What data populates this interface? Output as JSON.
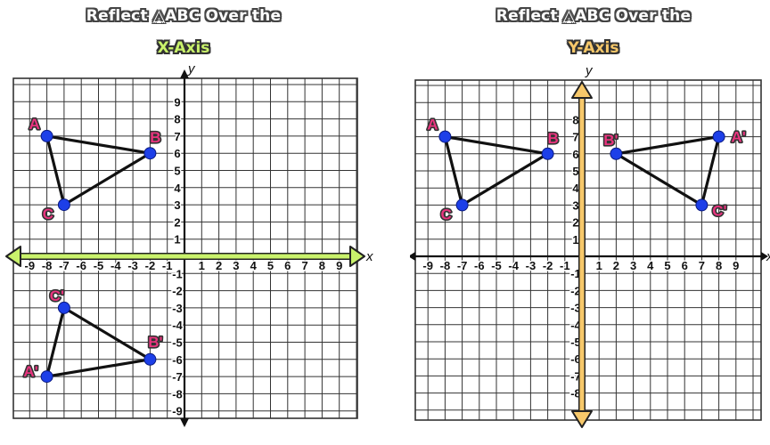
{
  "panels": [
    {
      "title": "Reflect △ABC Over the",
      "subtitle": "X-Axis",
      "subtitle_color": "#c9f26b",
      "axis_highlight_color": "#c9f26b",
      "axis_label_x": "x",
      "axis_label_y": "y",
      "x_ticks": [
        "-9",
        "-8",
        "-7",
        "-6",
        "-5",
        "-4",
        "-3",
        "-2",
        "-1",
        "1",
        "2",
        "3",
        "4",
        "5",
        "6",
        "7",
        "8",
        "9"
      ],
      "y_ticks": [
        "9",
        "8",
        "7",
        "6",
        "5",
        "4",
        "3",
        "2",
        "1",
        "-1",
        "-2",
        "-3",
        "-4",
        "-5",
        "-6",
        "-7",
        "-8",
        "-9"
      ],
      "triangles": [
        {
          "points": [
            {
              "label": "A",
              "x": -8,
              "y": 7
            },
            {
              "label": "B",
              "x": -2,
              "y": 6
            },
            {
              "label": "C",
              "x": -7,
              "y": 3
            }
          ]
        },
        {
          "points": [
            {
              "label": "A'",
              "x": -8,
              "y": -7
            },
            {
              "label": "B'",
              "x": -2,
              "y": -6
            },
            {
              "label": "C'",
              "x": -7,
              "y": -3
            }
          ]
        }
      ]
    },
    {
      "title": "Reflect △ABC Over the",
      "subtitle": "Y-Axis",
      "subtitle_color": "#f7c86a",
      "axis_highlight_color": "#f7c86a",
      "axis_label_x": "x",
      "axis_label_y": "y",
      "x_ticks": [
        "-9",
        "-8",
        "-7",
        "-6",
        "-5",
        "-4",
        "-3",
        "-2",
        "-1",
        "1",
        "2",
        "3",
        "4",
        "5",
        "6",
        "7",
        "8",
        "9"
      ],
      "y_ticks": [
        "8",
        "7",
        "6",
        "5",
        "4",
        "3",
        "2",
        "1",
        "-1",
        "-2",
        "-3",
        "-4",
        "-5",
        "-6",
        "-7",
        "-8"
      ],
      "triangles": [
        {
          "points": [
            {
              "label": "A",
              "x": -8,
              "y": 7
            },
            {
              "label": "B",
              "x": -2,
              "y": 6
            },
            {
              "label": "C",
              "x": -7,
              "y": 3
            }
          ]
        },
        {
          "points": [
            {
              "label": "A'",
              "x": 8,
              "y": 7
            },
            {
              "label": "B'",
              "x": 2,
              "y": 6
            },
            {
              "label": "C'",
              "x": 7,
              "y": 3
            }
          ]
        }
      ]
    }
  ],
  "colors": {
    "point": "#1d3fe8",
    "label": "#e8347e",
    "grid": "#333333"
  }
}
